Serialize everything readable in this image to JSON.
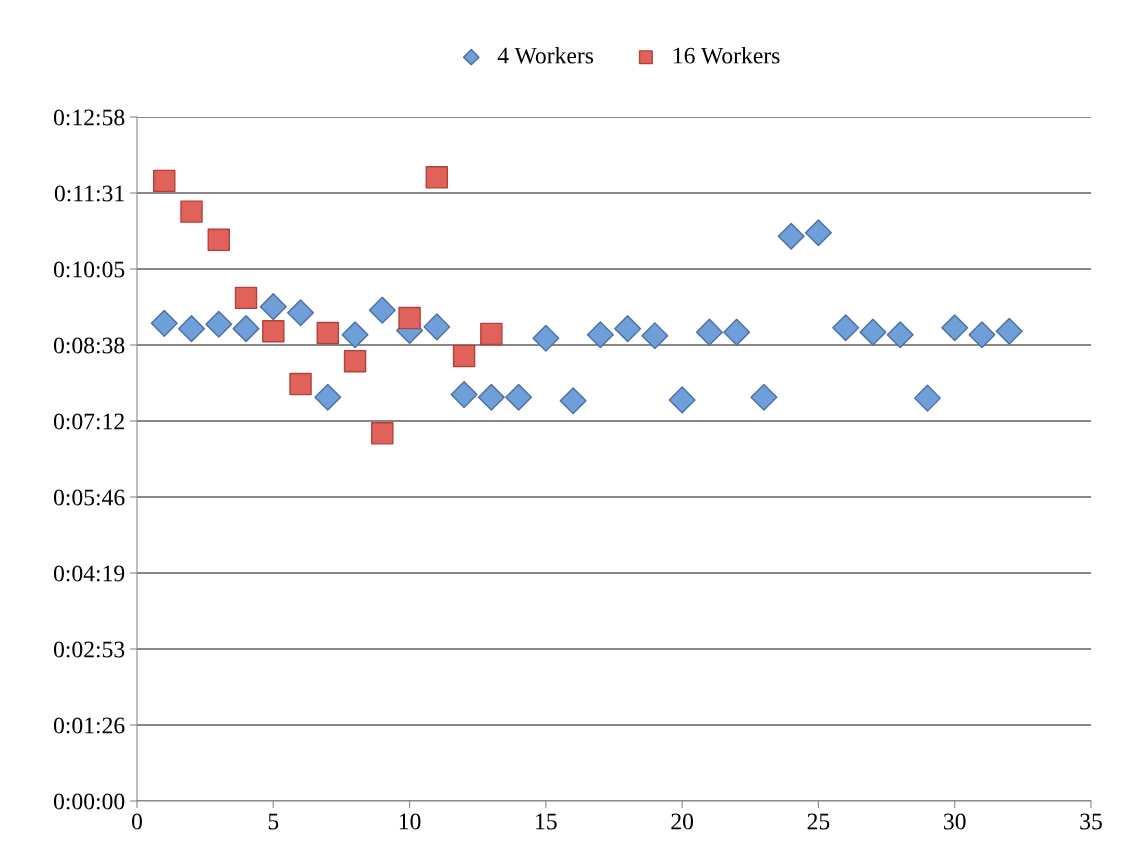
{
  "chart_data": {
    "type": "scatter",
    "xlim": [
      0,
      35
    ],
    "xticks": [
      0,
      5,
      10,
      15,
      20,
      25,
      30,
      35
    ],
    "ylim": [
      0,
      777.6
    ],
    "yticks": [
      {
        "value": 0,
        "label": "0:00:00"
      },
      {
        "value": 86.4,
        "label": "0:01:26"
      },
      {
        "value": 172.8,
        "label": "0:02:53"
      },
      {
        "value": 259.2,
        "label": "0:04:19"
      },
      {
        "value": 345.6,
        "label": "0:05:46"
      },
      {
        "value": 432,
        "label": "0:07:12"
      },
      {
        "value": 518.4,
        "label": "0:08:38"
      },
      {
        "value": 604.8,
        "label": "0:10:05"
      },
      {
        "value": 691.2,
        "label": "0:11:31"
      },
      {
        "value": 777.6,
        "label": "0:12:58"
      }
    ],
    "grid": "y",
    "legend": "top",
    "series": [
      {
        "name": "4 Workers",
        "color": "#6f9fd8",
        "marker": "diamond",
        "x": [
          1,
          2,
          3,
          4,
          5,
          6,
          7,
          8,
          9,
          10,
          11,
          12,
          13,
          14,
          15,
          16,
          17,
          18,
          19,
          20,
          21,
          22,
          23,
          24,
          25,
          26,
          27,
          28,
          29,
          30,
          31,
          32
        ],
        "values": [
          543,
          537,
          542,
          537,
          562,
          555,
          459,
          530,
          558,
          535,
          539,
          462,
          459,
          459,
          526,
          455,
          530,
          537,
          529,
          456,
          533,
          533,
          459,
          642,
          646,
          538,
          533,
          530,
          458,
          538,
          530,
          534
        ]
      },
      {
        "name": "16 Workers",
        "color": "#e0625a",
        "marker": "square",
        "x": [
          1,
          2,
          3,
          4,
          5,
          6,
          7,
          8,
          9,
          10,
          11,
          12,
          13
        ],
        "values": [
          705,
          670,
          638,
          572,
          534,
          474,
          532,
          500,
          418,
          549,
          709,
          506,
          531
        ]
      }
    ]
  }
}
